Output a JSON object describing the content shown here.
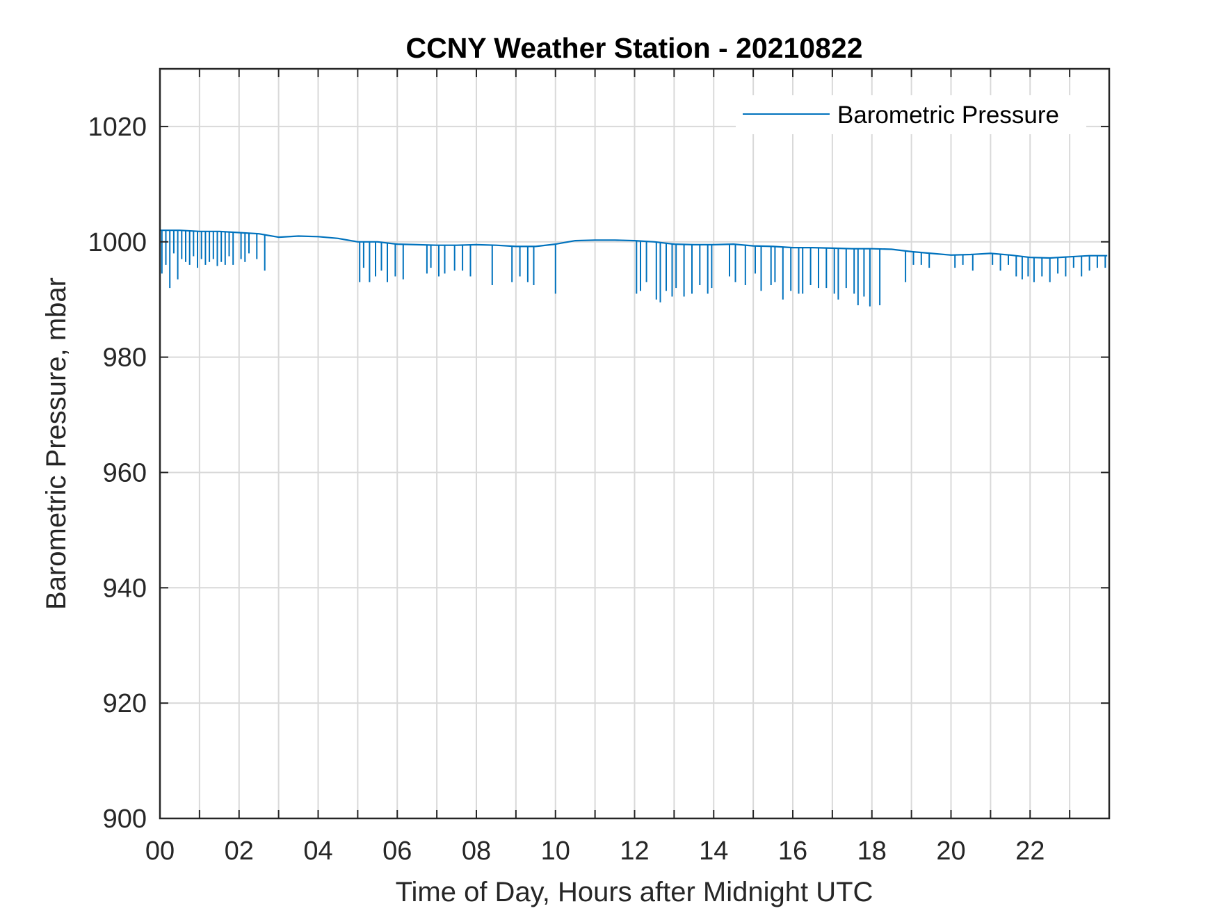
{
  "chart_data": {
    "type": "line",
    "title": "CCNY Weather Station - 20210822",
    "xlabel": "Time of Day, Hours after Midnight UTC",
    "ylabel": "Barometric Pressure, mbar",
    "xlim": [
      0,
      24
    ],
    "ylim": [
      900,
      1030
    ],
    "xticks": [
      0,
      2,
      4,
      6,
      8,
      10,
      12,
      14,
      16,
      18,
      20,
      22
    ],
    "xtick_labels": [
      "00",
      "02",
      "04",
      "06",
      "08",
      "10",
      "12",
      "14",
      "16",
      "18",
      "20",
      "22"
    ],
    "yticks": [
      900,
      920,
      940,
      960,
      980,
      1000,
      1020
    ],
    "ytick_labels": [
      "900",
      "920",
      "940",
      "960",
      "980",
      "1000",
      "1020"
    ],
    "grid": true,
    "legend_location": "top-right",
    "series": [
      {
        "name": "Barometric Pressure",
        "color": "#0072BD",
        "baseline": {
          "x": [
            0.0,
            0.5,
            1.0,
            1.5,
            2.0,
            2.5,
            3.0,
            3.5,
            4.0,
            4.5,
            5.0,
            5.5,
            6.0,
            6.5,
            7.0,
            7.5,
            8.0,
            8.5,
            9.0,
            9.5,
            10.0,
            10.5,
            11.0,
            11.5,
            12.0,
            12.5,
            13.0,
            13.5,
            14.0,
            14.5,
            15.0,
            15.5,
            16.0,
            16.5,
            17.0,
            17.5,
            18.0,
            18.5,
            19.0,
            19.5,
            20.0,
            20.5,
            21.0,
            21.5,
            22.0,
            22.5,
            23.0,
            23.5,
            23.95
          ],
          "y": [
            1002.0,
            1002.0,
            1001.8,
            1001.8,
            1001.6,
            1001.4,
            1000.8,
            1001.0,
            1000.9,
            1000.6,
            1000.0,
            1000.0,
            999.6,
            999.5,
            999.4,
            999.4,
            999.5,
            999.4,
            999.2,
            999.2,
            999.6,
            1000.2,
            1000.3,
            1000.3,
            1000.2,
            1000.0,
            999.6,
            999.5,
            999.5,
            999.6,
            999.3,
            999.2,
            999.0,
            999.0,
            998.9,
            998.8,
            998.8,
            998.7,
            998.3,
            998.0,
            997.7,
            997.8,
            998.0,
            997.7,
            997.3,
            997.2,
            997.4,
            997.6,
            997.6
          ]
        },
        "dips": {
          "x": [
            0.05,
            0.15,
            0.25,
            0.35,
            0.45,
            0.55,
            0.65,
            0.75,
            0.85,
            0.95,
            1.05,
            1.15,
            1.25,
            1.35,
            1.45,
            1.55,
            1.65,
            1.75,
            1.85,
            2.05,
            2.15,
            2.25,
            2.45,
            2.65,
            5.05,
            5.15,
            5.3,
            5.45,
            5.6,
            5.75,
            5.95,
            6.15,
            6.75,
            6.85,
            7.05,
            7.2,
            7.45,
            7.65,
            7.85,
            8.4,
            8.9,
            9.1,
            9.3,
            9.45,
            10.0,
            12.05,
            12.15,
            12.3,
            12.55,
            12.65,
            12.8,
            12.95,
            13.05,
            13.25,
            13.45,
            13.65,
            13.85,
            13.95,
            14.4,
            14.55,
            14.8,
            15.05,
            15.2,
            15.45,
            15.55,
            15.75,
            15.95,
            16.15,
            16.25,
            16.45,
            16.65,
            16.85,
            17.05,
            17.15,
            17.35,
            17.55,
            17.65,
            17.8,
            17.95,
            18.2,
            18.85,
            19.05,
            19.25,
            19.45,
            20.1,
            20.3,
            20.55,
            21.05,
            21.25,
            21.45,
            21.65,
            21.8,
            21.95,
            22.1,
            22.3,
            22.5,
            22.7,
            22.9,
            23.1,
            23.3,
            23.5,
            23.7,
            23.9
          ],
          "y": [
            994.5,
            996.0,
            992.0,
            998.0,
            993.5,
            997.0,
            996.5,
            996.0,
            997.5,
            995.5,
            997.0,
            996.0,
            996.5,
            997.0,
            995.8,
            996.5,
            996.0,
            997.5,
            996.0,
            997.0,
            996.5,
            998.0,
            997.0,
            995.0,
            993.0,
            995.5,
            993.0,
            994.0,
            995.0,
            993.0,
            994.0,
            993.5,
            994.5,
            995.5,
            994.0,
            994.5,
            995.0,
            995.0,
            994.0,
            992.5,
            993.0,
            994.0,
            993.0,
            992.5,
            991.0,
            991.0,
            991.5,
            993.0,
            990.0,
            989.5,
            991.5,
            990.5,
            992.0,
            990.5,
            991.0,
            992.5,
            991.0,
            992.0,
            994.0,
            993.0,
            992.5,
            994.5,
            991.5,
            992.5,
            993.0,
            990.0,
            991.5,
            991.0,
            991.0,
            992.5,
            992.0,
            992.0,
            991.0,
            990.0,
            992.0,
            991.0,
            989.0,
            990.5,
            988.8,
            989.0,
            993.0,
            996.0,
            996.0,
            995.5,
            995.5,
            996.0,
            995.0,
            996.0,
            995.0,
            996.0,
            994.0,
            993.5,
            994.0,
            993.0,
            994.0,
            993.0,
            994.5,
            994.0,
            995.5,
            994.0,
            995.0,
            995.5,
            995.5
          ]
        }
      }
    ]
  }
}
